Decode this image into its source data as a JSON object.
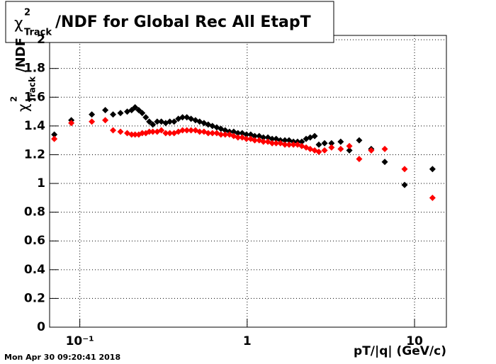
{
  "chart_data": {
    "type": "scatter",
    "title": {
      "symbol": "χ",
      "sup": "2",
      "sub": "Track",
      "text": "/NDF for Global Rec All EtapT"
    },
    "y_label": {
      "symbol": "χ",
      "sup": "2",
      "sub": "Track",
      "text": "/NDF"
    },
    "x_label": "pT/|q| (GeV/c)",
    "timestamp": "Mon Apr 30 09:20:41 2018",
    "log_x": true,
    "grid": true,
    "xlim": [
      0.066,
      15.5
    ],
    "xticks": [
      {
        "value": 0.1,
        "label": "10⁻¹"
      },
      1,
      10
    ],
    "ylim": [
      0,
      2.03
    ],
    "yticks": [
      0,
      0.2,
      0.4,
      0.6,
      0.8,
      1,
      1.2,
      1.4,
      1.6,
      1.8,
      2
    ],
    "x": [
      0.0704,
      0.089,
      0.118,
      0.142,
      0.158,
      0.175,
      0.192,
      0.204,
      0.214,
      0.225,
      0.236,
      0.248,
      0.26,
      0.273,
      0.29,
      0.307,
      0.326,
      0.345,
      0.366,
      0.388,
      0.411,
      0.436,
      0.462,
      0.491,
      0.52,
      0.552,
      0.585,
      0.62,
      0.658,
      0.697,
      0.739,
      0.784,
      0.831,
      0.881,
      0.934,
      0.99,
      1.05,
      1.11,
      1.18,
      1.25,
      1.33,
      1.41,
      1.49,
      1.58,
      1.68,
      1.78,
      1.89,
      2.0,
      2.12,
      2.25,
      2.38,
      2.53,
      2.68,
      2.9,
      3.19,
      3.62,
      4.08,
      4.67,
      5.51,
      6.64,
      8.72,
      12.8
    ],
    "series": [
      {
        "color": "#000000",
        "values": [
          1.34,
          1.44,
          1.48,
          1.51,
          1.48,
          1.49,
          1.5,
          1.51,
          1.53,
          1.51,
          1.49,
          1.46,
          1.43,
          1.41,
          1.43,
          1.43,
          1.42,
          1.43,
          1.43,
          1.45,
          1.46,
          1.46,
          1.45,
          1.44,
          1.43,
          1.42,
          1.41,
          1.4,
          1.39,
          1.38,
          1.37,
          1.36,
          1.36,
          1.35,
          1.35,
          1.34,
          1.34,
          1.33,
          1.33,
          1.32,
          1.32,
          1.31,
          1.31,
          1.3,
          1.3,
          1.3,
          1.29,
          1.29,
          1.29,
          1.31,
          1.32,
          1.33,
          1.27,
          1.28,
          1.28,
          1.29,
          1.23,
          1.3,
          1.24,
          1.15,
          0.99,
          1.1
        ]
      },
      {
        "color": "#ff0000",
        "values": [
          1.31,
          1.42,
          1.43,
          1.44,
          1.37,
          1.36,
          1.35,
          1.34,
          1.34,
          1.34,
          1.35,
          1.35,
          1.36,
          1.36,
          1.36,
          1.37,
          1.35,
          1.35,
          1.35,
          1.36,
          1.37,
          1.37,
          1.37,
          1.37,
          1.36,
          1.36,
          1.35,
          1.35,
          1.35,
          1.34,
          1.34,
          1.34,
          1.33,
          1.32,
          1.32,
          1.31,
          1.31,
          1.3,
          1.3,
          1.29,
          1.29,
          1.28,
          1.28,
          1.28,
          1.27,
          1.27,
          1.27,
          1.27,
          1.26,
          1.25,
          1.24,
          1.23,
          1.22,
          1.23,
          1.25,
          1.24,
          1.26,
          1.17,
          1.23,
          1.24,
          1.1,
          0.9
        ]
      }
    ]
  }
}
